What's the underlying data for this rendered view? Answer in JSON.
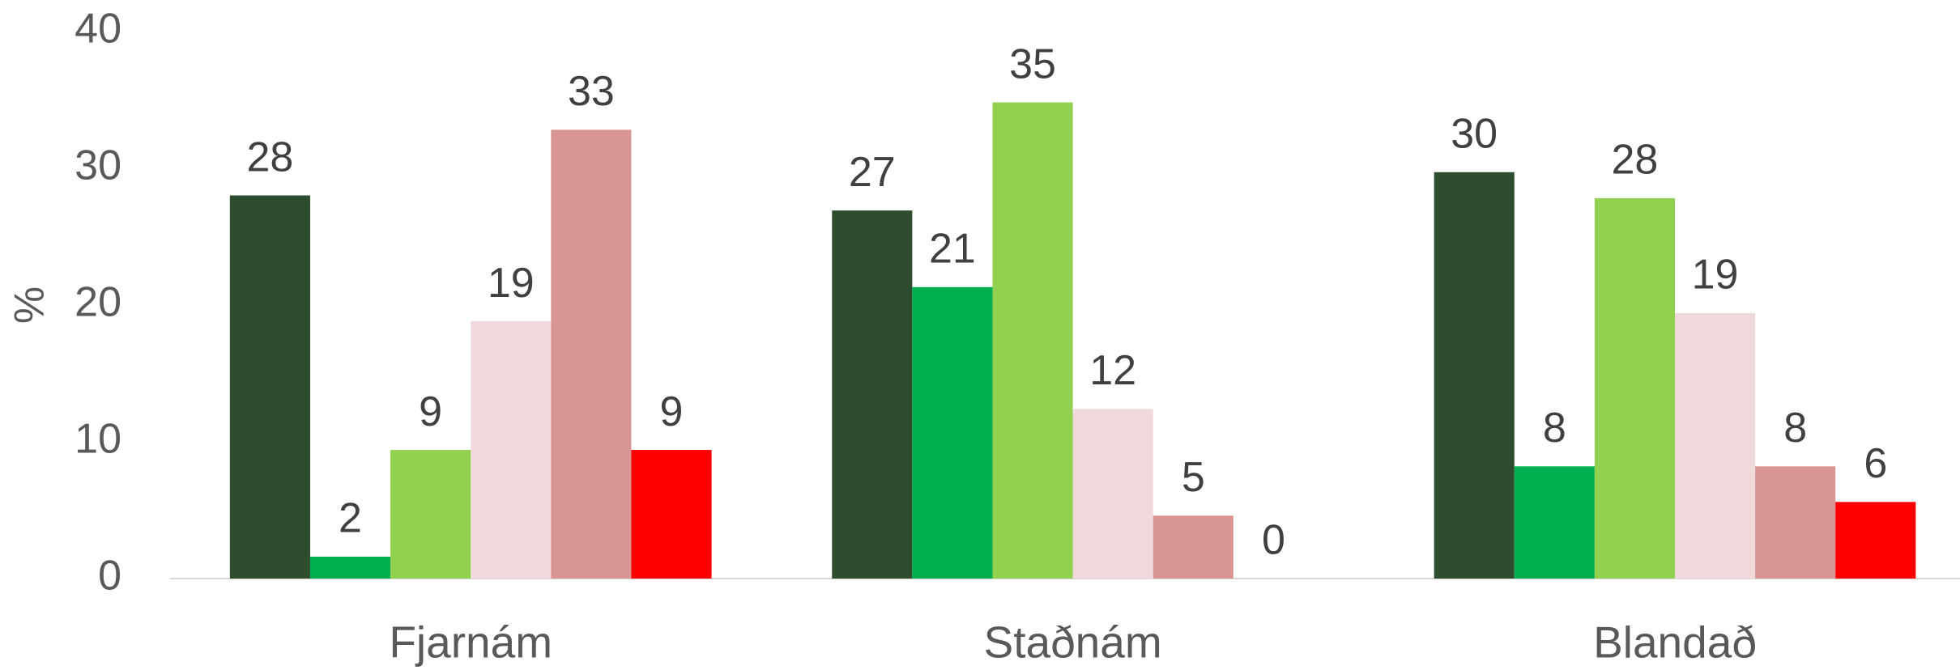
{
  "chart_data": {
    "type": "bar",
    "y_label": "%",
    "categories": [
      "Fjarnám",
      "Staðnám",
      "Blandað"
    ],
    "series": [
      {
        "color": "#2e4d2e",
        "values": [
          28.0,
          26.9,
          29.7
        ],
        "value_labels": [
          "28",
          "27",
          "30"
        ]
      },
      {
        "color": "#00b050",
        "values": [
          1.6,
          21.3,
          8.2
        ],
        "value_labels": [
          "2",
          "21",
          "8"
        ]
      },
      {
        "color": "#92d050",
        "values": [
          9.4,
          34.8,
          27.8
        ],
        "value_labels": [
          "9",
          "35",
          "28"
        ]
      },
      {
        "color": "#f0d9da",
        "values": [
          18.8,
          12.4,
          19.4
        ],
        "value_labels": [
          "19",
          "12",
          "19"
        ]
      },
      {
        "color": "#d99594",
        "values": [
          32.8,
          4.6,
          8.2
        ],
        "value_labels": [
          "33",
          "5",
          "8"
        ]
      },
      {
        "color": "#ff0000",
        "values": [
          9.4,
          0,
          5.6
        ],
        "value_labels": [
          "9",
          "0",
          "6"
        ]
      }
    ],
    "ylim": [
      0,
      40
    ],
    "yticks": [
      0,
      10,
      20,
      30,
      40
    ],
    "grid": false
  }
}
